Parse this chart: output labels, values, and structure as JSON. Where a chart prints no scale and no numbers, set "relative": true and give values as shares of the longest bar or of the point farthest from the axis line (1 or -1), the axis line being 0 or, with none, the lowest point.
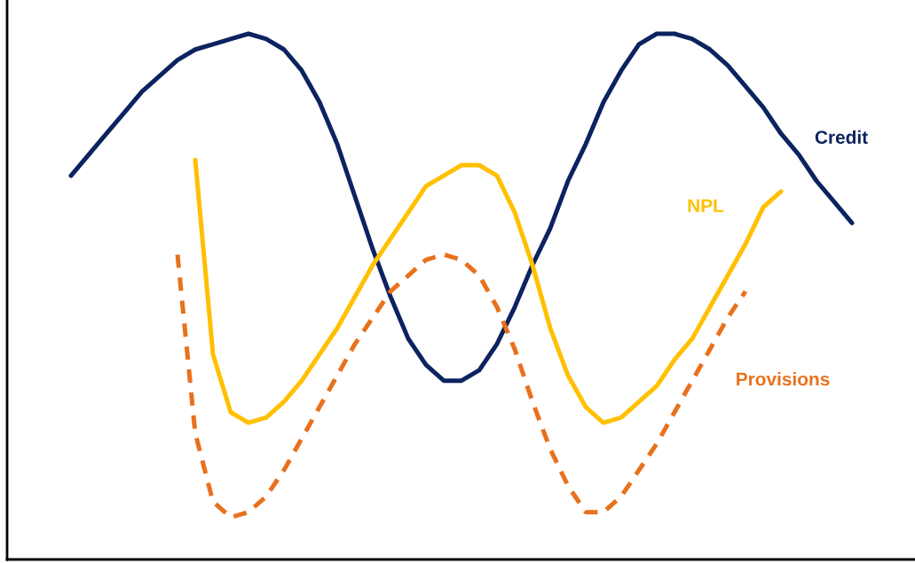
{
  "chart_data": {
    "type": "line",
    "relative": true,
    "legend": false,
    "marker": "none",
    "categories": [
      null,
      null,
      null,
      null,
      null,
      null,
      null,
      null,
      null,
      null,
      null,
      null,
      null,
      null,
      null,
      null,
      null,
      null,
      null,
      null,
      null,
      null,
      null,
      null,
      null,
      null,
      null,
      null,
      null,
      null,
      null,
      null,
      null,
      null,
      null,
      null,
      null,
      null,
      null,
      null,
      null,
      null,
      null,
      null,
      null
    ],
    "series": [
      {
        "name": "Credit",
        "color": "#0c2360",
        "line_style": "solid",
        "values": [
          0.73,
          0.77,
          0.81,
          0.85,
          0.89,
          0.92,
          0.95,
          0.97,
          0.98,
          0.99,
          1.0,
          0.99,
          0.97,
          0.93,
          0.87,
          0.79,
          0.69,
          0.59,
          0.5,
          0.42,
          0.37,
          0.34,
          0.34,
          0.36,
          0.41,
          0.48,
          0.56,
          0.63,
          0.72,
          0.79,
          0.87,
          0.93,
          0.98,
          1.0,
          1.0,
          0.99,
          0.97,
          0.94,
          0.9,
          0.86,
          0.81,
          0.77,
          0.72,
          0.68,
          0.64
        ]
      },
      {
        "name": "NPL",
        "color": "#ffc000",
        "line_style": "solid",
        "values": [
          null,
          null,
          null,
          null,
          null,
          null,
          null,
          0.76,
          0.39,
          0.28,
          0.26,
          0.27,
          0.3,
          0.34,
          0.39,
          0.44,
          0.5,
          0.56,
          0.61,
          0.66,
          0.71,
          0.73,
          0.75,
          0.75,
          0.73,
          0.66,
          0.56,
          0.44,
          0.35,
          0.29,
          0.26,
          0.27,
          0.3,
          0.33,
          0.38,
          0.42,
          0.48,
          0.54,
          0.6,
          0.67,
          0.7,
          null,
          null,
          null,
          null
        ]
      },
      {
        "name": "Provisions",
        "color": "#e8711c",
        "line_style": "dashed",
        "values": [
          null,
          null,
          null,
          null,
          null,
          null,
          0.58,
          0.24,
          0.11,
          0.08,
          0.09,
          0.12,
          0.17,
          0.23,
          0.29,
          0.35,
          0.41,
          0.46,
          0.51,
          0.54,
          0.57,
          0.58,
          0.57,
          0.54,
          0.48,
          0.4,
          0.3,
          0.21,
          0.14,
          0.09,
          0.09,
          0.12,
          0.17,
          0.22,
          0.28,
          0.34,
          0.4,
          0.46,
          0.51,
          null,
          null,
          null,
          null,
          null,
          null
        ]
      }
    ]
  }
}
